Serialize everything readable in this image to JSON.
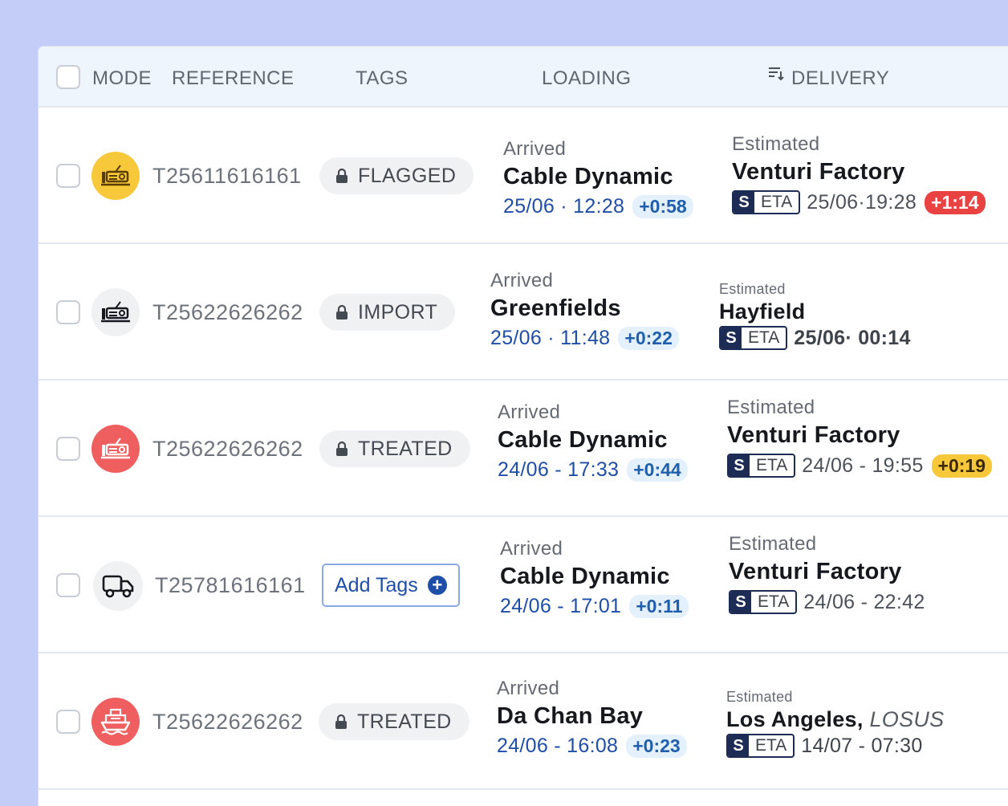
{
  "header": {
    "mode": "MODE",
    "reference": "REFERENCE",
    "tags": "TAGS",
    "loading": "LOADING",
    "delivery": "DELIVERY"
  },
  "colors": {
    "yellow_mode": "#f7c83a",
    "red_mode": "#ef5f5f",
    "neutral_mode": "#f0f1f3",
    "accent_blue": "#1f4ea8",
    "delta_red": "#e94242",
    "delta_yellow": "#f7c83a"
  },
  "rows": [
    {
      "mode_icon": "train-icon",
      "reference": "T25611616161",
      "tag": "FLAGGED",
      "loading": {
        "status": "Arrived",
        "place": "Cable Dynamic",
        "time": "25/06 · 12:28",
        "delta": "+0:58"
      },
      "delivery": {
        "status": "Estimated",
        "place": "Venturi Factory",
        "badge_s": "S",
        "badge_eta": "ETA",
        "time": "25/06·19:28",
        "delta": "+1:14"
      }
    },
    {
      "mode_icon": "train-icon",
      "reference": "T25622626262",
      "tag": "IMPORT",
      "loading": {
        "status": "Arrived",
        "place": "Greenfields",
        "time": "25/06 · 11:48",
        "delta": "+0:22"
      },
      "delivery": {
        "status": "Estimated",
        "place": "Hayfield",
        "badge_s": "S",
        "badge_eta": "ETA",
        "time": "25/06· 00:14"
      }
    },
    {
      "mode_icon": "train-icon",
      "reference": "T25622626262",
      "tag": "TREATED",
      "loading": {
        "status": "Arrived",
        "place": "Cable Dynamic",
        "time": "24/06 - 17:33",
        "delta": "+0:44"
      },
      "delivery": {
        "status": "Estimated",
        "place": "Venturi Factory",
        "badge_s": "S",
        "badge_eta": "ETA",
        "time": "24/06 - 19:55",
        "delta": "+0:19"
      }
    },
    {
      "mode_icon": "truck-icon",
      "reference": "T25781616161",
      "add_tags": "Add Tags",
      "loading": {
        "status": "Arrived",
        "place": "Cable Dynamic",
        "time": "24/06 - 17:01",
        "delta": "+0:11"
      },
      "delivery": {
        "status": "Estimated",
        "place": "Venturi Factory",
        "badge_s": "S",
        "badge_eta": "ETA",
        "time": "24/06 - 22:42"
      }
    },
    {
      "mode_icon": "ship-icon",
      "reference": "T25622626262",
      "tag": "TREATED",
      "loading": {
        "status": "Arrived",
        "place": "Da Chan Bay",
        "time": "24/06 - 16:08",
        "delta": "+0:23"
      },
      "delivery": {
        "status": "Estimated",
        "place": "Los Angeles,",
        "place_code": "LOSUS",
        "badge_s": "S",
        "badge_eta": "ETA",
        "time": "14/07 - 07:30"
      }
    }
  ]
}
